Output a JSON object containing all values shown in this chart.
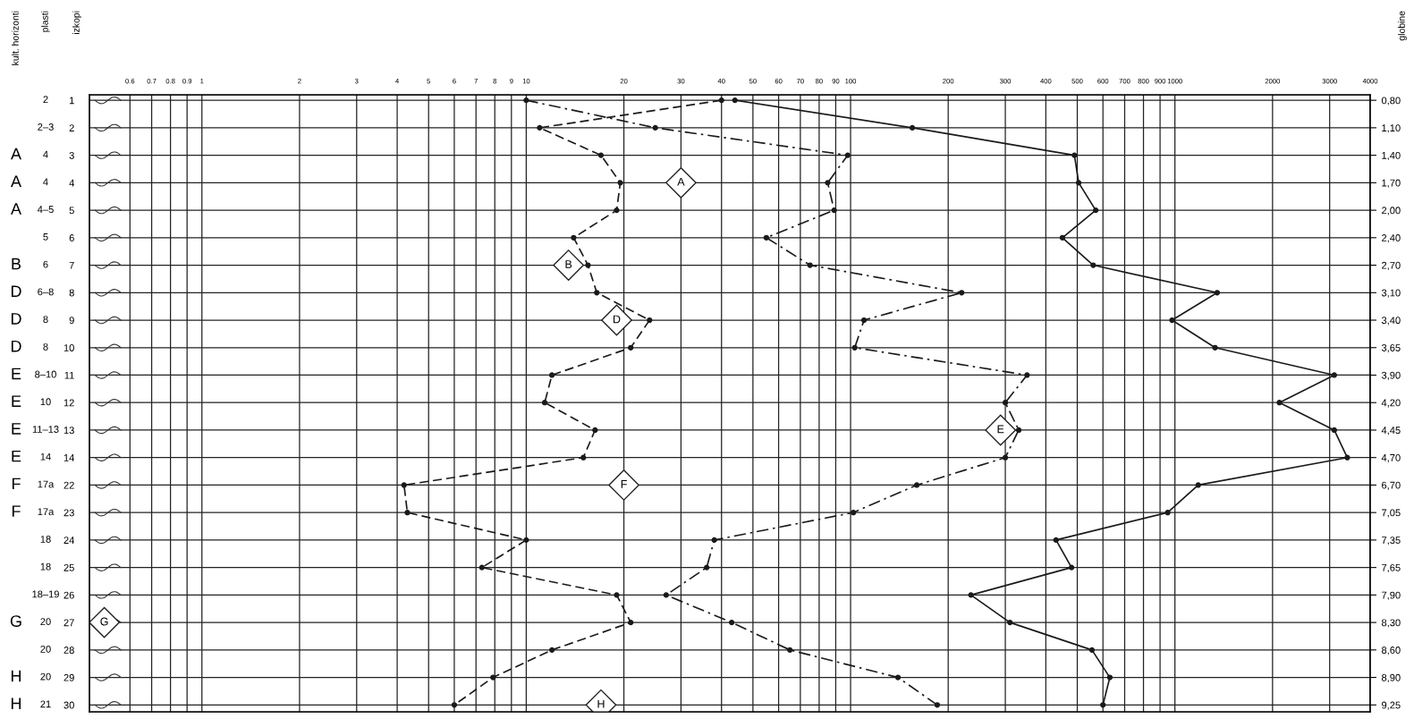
{
  "chart_data": {
    "type": "line",
    "orientation": "horizontal",
    "log": "x",
    "categories": [
      "1",
      "2",
      "3",
      "4",
      "5",
      "6",
      "7",
      "8",
      "9",
      "10",
      "11",
      "12",
      "13",
      "14",
      "22",
      "23",
      "24",
      "25",
      "26",
      "27",
      "28",
      "29",
      "30"
    ],
    "y2_categories": [
      "0,80",
      "1,10",
      "1,40",
      "1,70",
      "2,00",
      "2,40",
      "2,70",
      "3,10",
      "3,40",
      "3,65",
      "3,90",
      "4,20",
      "4,45",
      "4,70",
      "6,70",
      "7,05",
      "7,35",
      "7,65",
      "7,90",
      "8,30",
      "8,60",
      "8,90",
      "9,25"
    ],
    "series": [
      {
        "color": "#1a1a1a",
        "line_style": "dashed",
        "values": [
          40,
          11,
          17,
          19.5,
          19,
          14,
          15.5,
          16.5,
          24,
          21,
          12,
          11.4,
          16.3,
          15,
          4.2,
          4.3,
          10,
          7.3,
          19,
          21,
          12,
          7.9,
          6
        ]
      },
      {
        "color": "#1a1a1a",
        "line_style": "dashdot",
        "values": [
          10,
          25,
          98,
          85,
          89,
          55,
          75,
          220,
          110,
          103,
          350,
          300,
          330,
          300,
          160,
          102,
          38,
          36,
          27,
          43,
          65,
          140,
          185
        ]
      },
      {
        "color": "#1a1a1a",
        "line_style": "solid",
        "values": [
          44,
          155,
          490,
          505,
          570,
          450,
          560,
          1350,
          980,
          1330,
          3100,
          2100,
          3100,
          3400,
          1180,
          950,
          430,
          480,
          235,
          310,
          555,
          630,
          600
        ]
      }
    ],
    "xlim": [
      0.45,
      4000
    ],
    "xticks": [
      0.6,
      0.7,
      0.8,
      0.9,
      1,
      2,
      3,
      4,
      5,
      6,
      7,
      8,
      9,
      10,
      20,
      30,
      40,
      50,
      60,
      70,
      80,
      90,
      100,
      200,
      300,
      400,
      500,
      600,
      700,
      800,
      900,
      1000,
      2000,
      3000,
      4000
    ],
    "grid": true,
    "marker": "circle",
    "annotations": [
      "kult. horizonti",
      "plasti",
      "izkopi",
      "globine",
      "2",
      "2–3",
      "4",
      "4",
      "4–5",
      "5",
      "6",
      "6–8",
      "8",
      "8",
      "8–10",
      "10",
      "11–13",
      "14",
      "17a",
      "17a",
      "18",
      "18",
      "18–19",
      "20",
      "20",
      "20",
      "21",
      "\n\nA\nA\nA\n\nB\nD\nD\nD\nE\nE\nE\nE\nF\nF\n\n\n\nG\n\nH\nH",
      {
        "text": "A",
        "x": 30,
        "y": "4"
      },
      {
        "text": "B",
        "x": 13.5,
        "y": "7"
      },
      {
        "text": "D",
        "x": 19,
        "y": "9"
      },
      {
        "text": "E",
        "x": 290,
        "y": "13"
      },
      {
        "text": "F",
        "x": 20,
        "y": "22"
      },
      {
        "text": "G",
        "x": 0.5,
        "y": "27"
      },
      {
        "text": "H",
        "x": 17,
        "y": "30"
      }
    ]
  }
}
